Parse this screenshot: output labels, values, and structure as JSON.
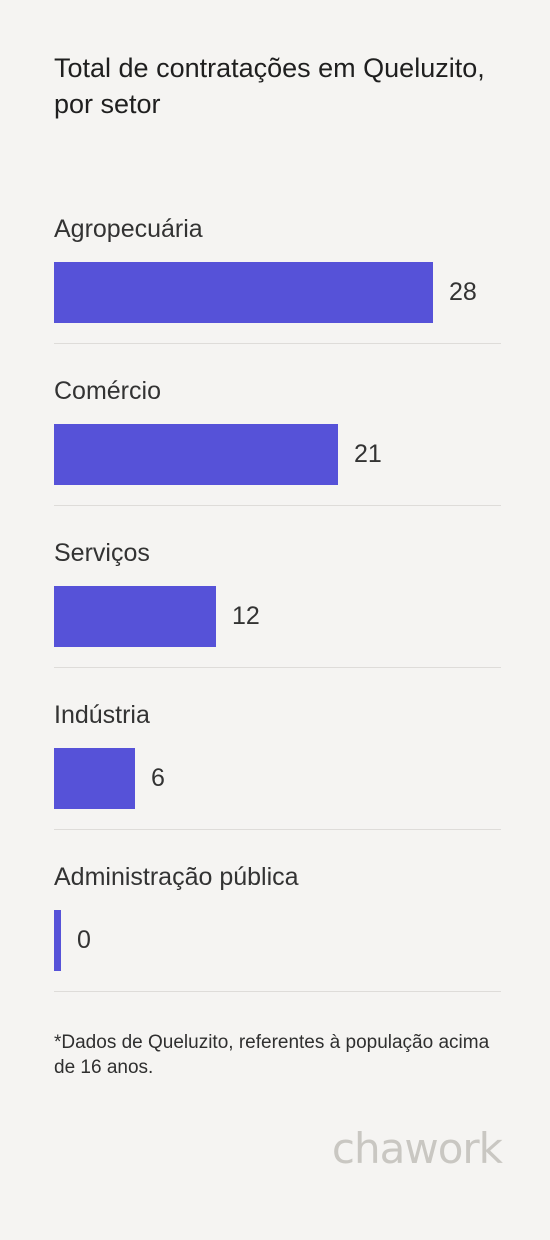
{
  "chart_data": {
    "type": "bar",
    "orientation": "horizontal",
    "title": "Total de contratações em Queluzito, por setor",
    "categories": [
      "Agropecuária",
      "Comércio",
      "Serviços",
      "Indústria",
      "Administração pública"
    ],
    "values": [
      28,
      21,
      12,
      6,
      0
    ],
    "bar_color": "#5652d8"
  },
  "footnote": "*Dados de Queluzito, referentes à população acima de 16 anos.",
  "brand": "chawork"
}
